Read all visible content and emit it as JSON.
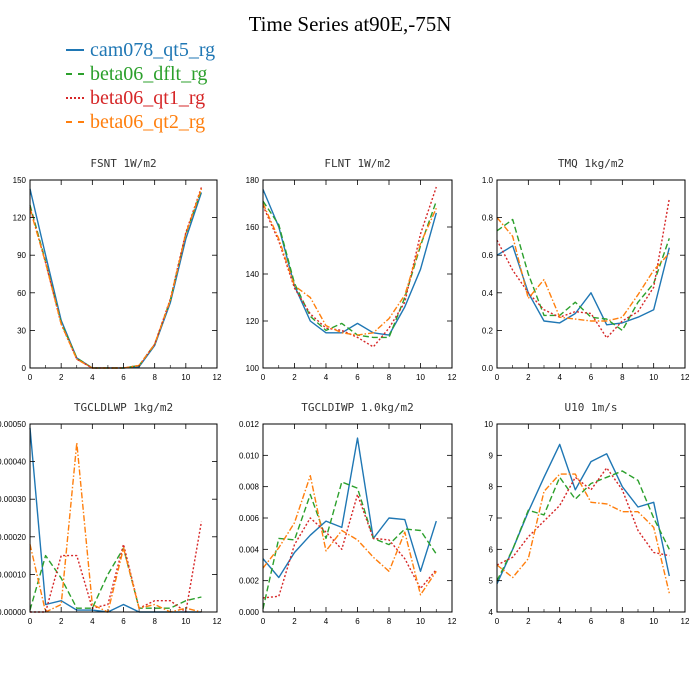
{
  "title": "Time Series at90E,-75N",
  "legend": [
    {
      "name": "cam078_qt5_rg",
      "color": "#1f77b4",
      "dash": "solid"
    },
    {
      "name": "beta06_dflt_rg",
      "color": "#2ca02c",
      "dash": "dashed"
    },
    {
      "name": "beta06_qt1_rg",
      "color": "#d62728",
      "dash": "dotted"
    },
    {
      "name": "beta06_qt2_rg",
      "color": "#ff7f0e",
      "dash": "dashdot"
    }
  ],
  "chart_data": [
    {
      "type": "line",
      "title": "FSNT  1W/m2",
      "x": [
        0,
        1,
        2,
        3,
        4,
        5,
        6,
        7,
        8,
        9,
        10,
        11
      ],
      "xlim": [
        0,
        12
      ],
      "xticks": [
        0,
        2,
        4,
        6,
        8,
        10,
        12
      ],
      "ylim": [
        0,
        150
      ],
      "yticks": [
        0,
        30,
        60,
        90,
        120,
        150
      ],
      "yticklabels": [
        "0",
        "30",
        "60",
        "90",
        "120",
        "150"
      ],
      "series": [
        {
          "name": "cam078_qt5_rg",
          "values": [
            143,
            90,
            38,
            8,
            0,
            0,
            0,
            1,
            18,
            52,
            103,
            140
          ]
        },
        {
          "name": "beta06_dflt_rg",
          "values": [
            130,
            85,
            36,
            8,
            0,
            0,
            0,
            2,
            19,
            54,
            107,
            142
          ]
        },
        {
          "name": "beta06_qt1_rg",
          "values": [
            128,
            84,
            35,
            7,
            0,
            0,
            0,
            2,
            19,
            55,
            108,
            144
          ]
        },
        {
          "name": "beta06_qt2_rg",
          "values": [
            127,
            84,
            35,
            7,
            0,
            0,
            0,
            2,
            19,
            54,
            107,
            143
          ]
        }
      ]
    },
    {
      "type": "line",
      "title": "FLNT  1W/m2",
      "x": [
        0,
        1,
        2,
        3,
        4,
        5,
        6,
        7,
        8,
        9,
        10,
        11
      ],
      "xlim": [
        0,
        12
      ],
      "xticks": [
        0,
        2,
        4,
        6,
        8,
        10,
        12
      ],
      "ylim": [
        100,
        180
      ],
      "yticks": [
        100,
        120,
        140,
        160,
        180
      ],
      "yticklabels": [
        "100",
        "120",
        "140",
        "160",
        "180"
      ],
      "series": [
        {
          "name": "cam078_qt5_rg",
          "values": [
            176,
            160,
            135,
            120,
            115,
            115,
            119,
            115,
            114,
            126,
            142,
            166
          ]
        },
        {
          "name": "beta06_dflt_rg",
          "values": [
            171,
            161,
            136,
            122,
            116,
            119,
            114,
            113,
            113,
            130,
            152,
            171
          ]
        },
        {
          "name": "beta06_qt1_rg",
          "values": [
            169,
            154,
            134,
            123,
            117,
            116,
            113,
            109,
            117,
            128,
            157,
            177
          ]
        },
        {
          "name": "beta06_qt2_rg",
          "values": [
            170,
            155,
            135,
            130,
            118,
            115,
            114,
            115,
            121,
            131,
            153,
            168
          ]
        }
      ]
    },
    {
      "type": "line",
      "title": "TMQ  1kg/m2",
      "x": [
        0,
        1,
        2,
        3,
        4,
        5,
        6,
        7,
        8,
        9,
        10,
        11
      ],
      "xlim": [
        0,
        12
      ],
      "xticks": [
        0,
        2,
        4,
        6,
        8,
        10,
        12
      ],
      "ylim": [
        0,
        1
      ],
      "yticks": [
        0,
        0.2,
        0.4,
        0.6,
        0.8,
        1.0
      ],
      "yticklabels": [
        "0.0",
        "0.2",
        "0.4",
        "0.6",
        "0.8",
        "1.0"
      ],
      "series": [
        {
          "name": "cam078_qt5_rg",
          "values": [
            0.6,
            0.65,
            0.4,
            0.25,
            0.24,
            0.29,
            0.4,
            0.23,
            0.24,
            0.27,
            0.31,
            0.64
          ]
        },
        {
          "name": "beta06_dflt_rg",
          "values": [
            0.73,
            0.79,
            0.5,
            0.28,
            0.28,
            0.35,
            0.27,
            0.26,
            0.2,
            0.35,
            0.45,
            0.69
          ]
        },
        {
          "name": "beta06_qt1_rg",
          "values": [
            0.68,
            0.52,
            0.4,
            0.31,
            0.27,
            0.3,
            0.29,
            0.16,
            0.25,
            0.3,
            0.43,
            0.9
          ]
        },
        {
          "name": "beta06_qt2_rg",
          "values": [
            0.8,
            0.7,
            0.37,
            0.47,
            0.27,
            0.26,
            0.25,
            0.25,
            0.27,
            0.39,
            0.52,
            0.61
          ]
        }
      ]
    },
    {
      "type": "line",
      "title": "TGCLDLWP  1kg/m2",
      "x": [
        0,
        1,
        2,
        3,
        4,
        5,
        6,
        7,
        8,
        9,
        10,
        11
      ],
      "xlim": [
        0,
        12
      ],
      "xticks": [
        0,
        2,
        4,
        6,
        8,
        10,
        12
      ],
      "ylim": [
        0,
        0.0005
      ],
      "yticks": [
        0,
        0.0001,
        0.0002,
        0.0003,
        0.0004,
        0.0005
      ],
      "yticklabels": [
        "0.00000",
        "0.00010",
        "0.00020",
        "0.00030",
        "0.00040",
        "0.00050"
      ],
      "series": [
        {
          "name": "cam078_qt5_rg",
          "values": [
            0.00049,
            2e-05,
            3e-05,
            5e-06,
            5e-06,
            0,
            2e-05,
            0,
            0,
            0,
            0,
            0
          ]
        },
        {
          "name": "beta06_dflt_rg",
          "values": [
            5e-06,
            0.00015,
            9e-05,
            1e-05,
            1e-05,
            0.0001,
            0.00017,
            1e-05,
            1e-05,
            1e-05,
            3e-05,
            4e-05
          ]
        },
        {
          "name": "beta06_qt1_rg",
          "values": [
            0,
            0,
            0.00015,
            0.00015,
            1e-05,
            2e-05,
            0.00018,
            1e-05,
            3e-05,
            3e-05,
            0,
            0.00024
          ]
        },
        {
          "name": "beta06_qt2_rg",
          "values": [
            0.00018,
            0,
            2e-05,
            0.00045,
            2e-05,
            0,
            0.00017,
            1e-05,
            2e-05,
            0,
            1e-05,
            0
          ]
        }
      ]
    },
    {
      "type": "line",
      "title": "TGCLDIWP  1.0kg/m2",
      "x": [
        0,
        1,
        2,
        3,
        4,
        5,
        6,
        7,
        8,
        9,
        10,
        11
      ],
      "xlim": [
        0,
        12
      ],
      "xticks": [
        0,
        2,
        4,
        6,
        8,
        10,
        12
      ],
      "ylim": [
        0,
        0.012
      ],
      "yticks": [
        0,
        0.002,
        0.004,
        0.006,
        0.008,
        0.01,
        0.012
      ],
      "yticklabels": [
        "0.000",
        "0.002",
        "0.004",
        "0.006",
        "0.008",
        "0.010",
        "0.012"
      ],
      "series": [
        {
          "name": "cam078_qt5_rg",
          "values": [
            0.0034,
            0.0022,
            0.0038,
            0.0049,
            0.0058,
            0.0054,
            0.0111,
            0.0047,
            0.006,
            0.0059,
            0.0026,
            0.0058
          ]
        },
        {
          "name": "beta06_dflt_rg",
          "values": [
            0.0002,
            0.0047,
            0.0046,
            0.0075,
            0.0047,
            0.0083,
            0.0079,
            0.0047,
            0.0043,
            0.0053,
            0.0052,
            0.0037
          ]
        },
        {
          "name": "beta06_qt1_rg",
          "values": [
            0.0009,
            0.001,
            0.0043,
            0.006,
            0.0051,
            0.004,
            0.0075,
            0.0047,
            0.0046,
            0.0034,
            0.0015,
            0.0027
          ]
        },
        {
          "name": "beta06_qt2_rg",
          "values": [
            0.0028,
            0.0041,
            0.0057,
            0.0087,
            0.0039,
            0.0052,
            0.0046,
            0.0035,
            0.0026,
            0.0051,
            0.0011,
            0.0026
          ]
        }
      ]
    },
    {
      "type": "line",
      "title": "U10  1m/s",
      "x": [
        0,
        1,
        2,
        3,
        4,
        5,
        6,
        7,
        8,
        9,
        10,
        11
      ],
      "xlim": [
        0,
        12
      ],
      "xticks": [
        0,
        2,
        4,
        6,
        8,
        10,
        12
      ],
      "ylim": [
        4,
        10
      ],
      "yticks": [
        4,
        5,
        6,
        7,
        8,
        9,
        10
      ],
      "yticklabels": [
        "4",
        "5",
        "6",
        "7",
        "8",
        "9",
        "10"
      ],
      "series": [
        {
          "name": "cam078_qt5_rg",
          "values": [
            4.9,
            6.0,
            7.2,
            8.3,
            9.35,
            7.9,
            8.8,
            9.05,
            8.0,
            7.35,
            7.5,
            5.15
          ]
        },
        {
          "name": "beta06_dflt_rg",
          "values": [
            5.0,
            6.0,
            7.25,
            7.1,
            8.3,
            7.6,
            8.1,
            8.3,
            8.5,
            8.2,
            7.0,
            6.0
          ]
        },
        {
          "name": "beta06_qt1_rg",
          "values": [
            5.5,
            5.75,
            6.4,
            6.9,
            7.4,
            8.3,
            7.9,
            8.6,
            7.9,
            6.6,
            5.9,
            5.8
          ]
        },
        {
          "name": "beta06_qt2_rg",
          "values": [
            5.5,
            5.1,
            5.7,
            7.85,
            8.4,
            8.4,
            7.5,
            7.45,
            7.2,
            7.2,
            6.7,
            4.6
          ]
        }
      ]
    }
  ]
}
